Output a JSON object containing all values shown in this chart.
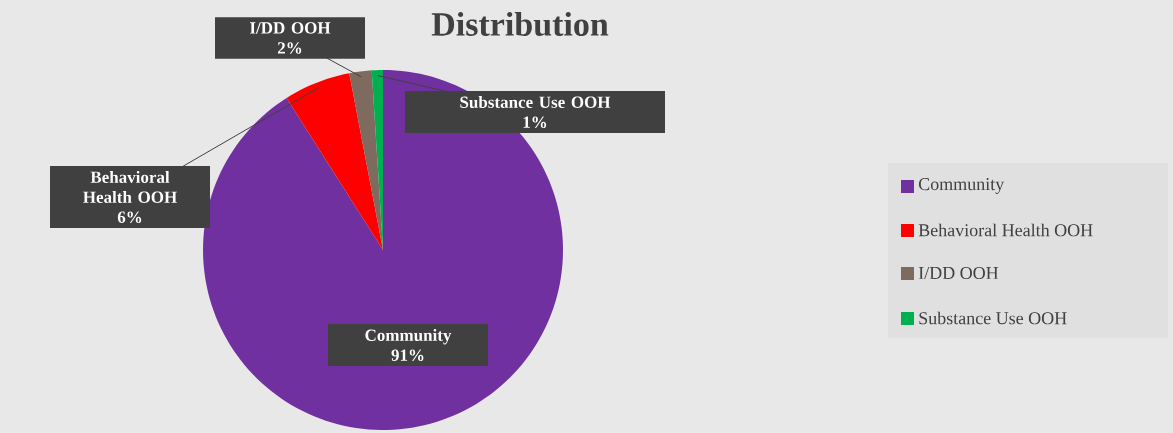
{
  "chart_data": {
    "type": "pie",
    "title": "Distribution",
    "categories": [
      "Community",
      "Behavioral Health OOH",
      "I/DD OOH",
      "Substance Use OOH"
    ],
    "values": [
      91,
      6,
      2,
      1
    ],
    "colors": [
      "#7030a0",
      "#ff0000",
      "#7f6a60",
      "#00b050"
    ],
    "value_labels": [
      "91%",
      "6%",
      "2%",
      "1%"
    ],
    "legend": "right"
  }
}
